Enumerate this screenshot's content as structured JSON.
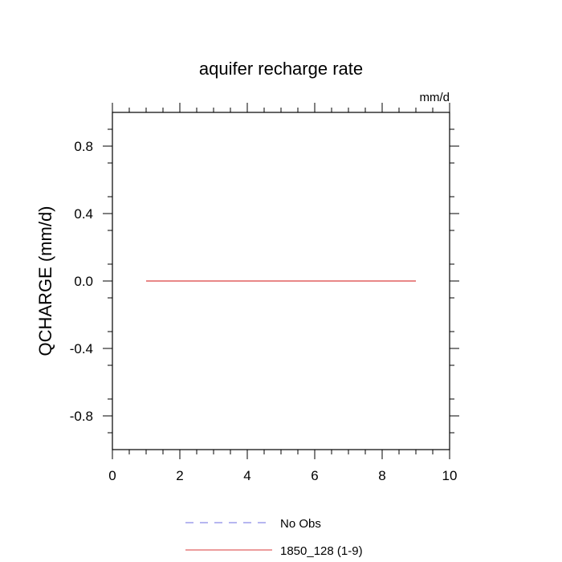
{
  "chart_data": {
    "type": "line",
    "title": "aquifer recharge rate",
    "units": "mm/d",
    "ylabel": "QCHARGE  (mm/d)",
    "xlabel": "",
    "xlim": [
      0,
      10
    ],
    "ylim": [
      -1,
      1
    ],
    "x_ticks": [
      0,
      2,
      4,
      6,
      8,
      10
    ],
    "x_tick_labels": [
      "0",
      "2",
      "4",
      "6",
      "8",
      "10"
    ],
    "y_ticks": [
      -0.8,
      -0.4,
      0.0,
      0.4,
      0.8
    ],
    "y_tick_labels": [
      "-0.8",
      "-0.4",
      "0.0",
      "0.4",
      "0.8"
    ],
    "grid": false,
    "legend_position": "bottom",
    "series": [
      {
        "name": "No Obs",
        "color": "#8a8ae6",
        "dash": "dashed",
        "x": [],
        "y": []
      },
      {
        "name": "1850_128 (1-9)",
        "color": "#e06060",
        "dash": "solid",
        "x": [
          1,
          9
        ],
        "y": [
          0.0,
          0.0
        ]
      }
    ]
  }
}
